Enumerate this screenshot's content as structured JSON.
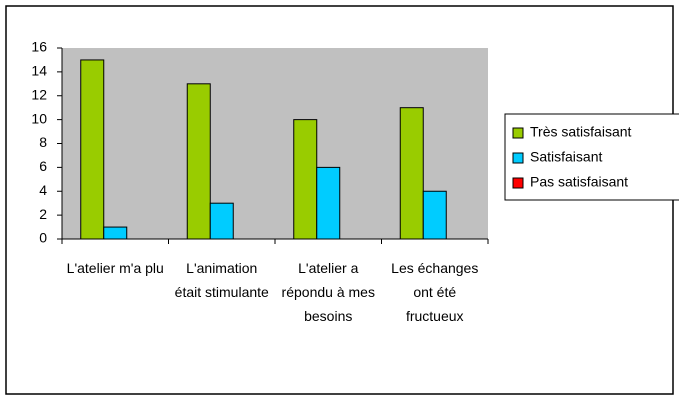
{
  "chart_data": {
    "type": "bar",
    "categories": [
      "L'atelier m'a plu",
      "L'animation était stimulante",
      "L'atelier a répondu à mes besoins",
      "Les échanges ont été fructueux"
    ],
    "series": [
      {
        "name": "Très satisfaisant",
        "color": "#99cc00",
        "values": [
          15,
          13,
          10,
          11
        ]
      },
      {
        "name": "Satisfaisant",
        "color": "#00ccff",
        "values": [
          1,
          3,
          6,
          4
        ]
      },
      {
        "name": "Pas satisfaisant",
        "color": "#ff0000",
        "values": [
          0,
          0,
          0,
          0
        ]
      }
    ],
    "ylim": [
      0,
      16
    ],
    "yticks": [
      0,
      2,
      4,
      6,
      8,
      10,
      12,
      14,
      16
    ],
    "grid": false,
    "legend": "right",
    "plot_background": "#c0c0c0"
  }
}
